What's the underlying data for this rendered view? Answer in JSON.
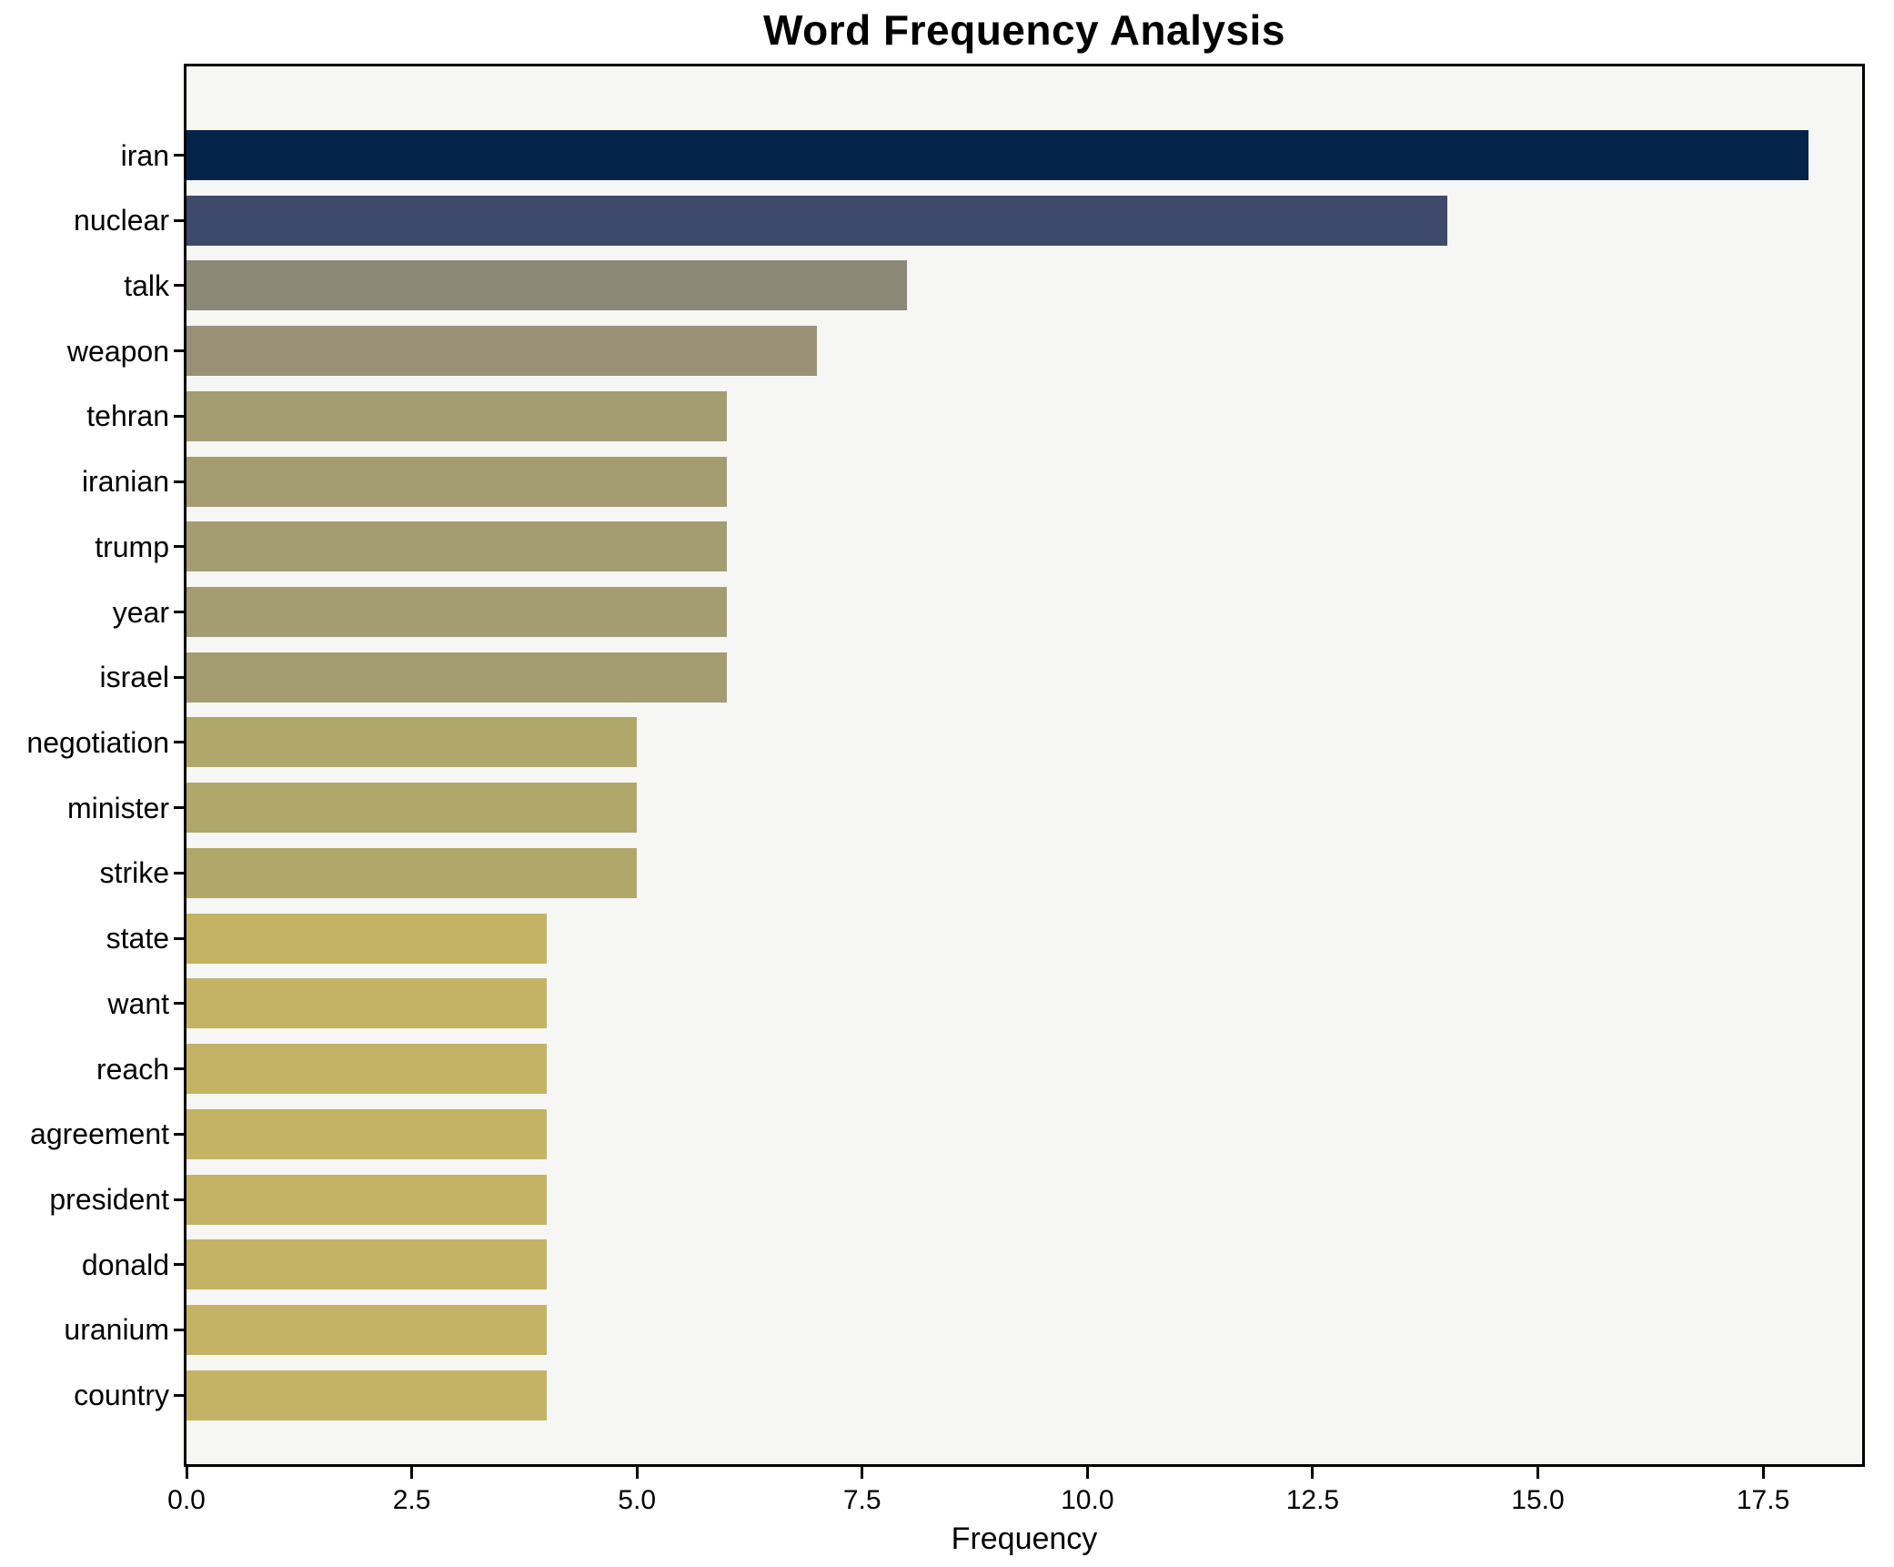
{
  "chart_data": {
    "type": "bar",
    "orientation": "horizontal",
    "title": "Word Frequency Analysis",
    "xlabel": "Frequency",
    "ylabel": "",
    "categories": [
      "iran",
      "nuclear",
      "talk",
      "weapon",
      "tehran",
      "iranian",
      "trump",
      "year",
      "israel",
      "negotiation",
      "minister",
      "strike",
      "state",
      "want",
      "reach",
      "agreement",
      "president",
      "donald",
      "uranium",
      "country"
    ],
    "values": [
      18,
      14,
      8,
      7,
      6,
      6,
      6,
      6,
      6,
      5,
      5,
      5,
      4,
      4,
      4,
      4,
      4,
      4,
      4,
      4
    ],
    "bar_colors": [
      "#03234b",
      "#3e4a6b",
      "#8b8878",
      "#999176",
      "#a59d72",
      "#a59d72",
      "#a59d72",
      "#a59d72",
      "#a59d72",
      "#b0a76b",
      "#b0a76b",
      "#b0a76b",
      "#c4b364",
      "#c4b364",
      "#c4b364",
      "#c4b364",
      "#c4b364",
      "#c4b364",
      "#c4b364",
      "#c4b364"
    ],
    "xlim": [
      0,
      18.6
    ],
    "xticks": [
      0.0,
      2.5,
      5.0,
      7.5,
      10.0,
      12.5,
      15.0,
      17.5
    ],
    "xtick_labels": [
      "0.0",
      "2.5",
      "5.0",
      "7.5",
      "10.0",
      "12.5",
      "15.0",
      "17.5"
    ],
    "grid": false,
    "legend": null,
    "colors": {
      "plot_background": "#f6f6f5",
      "figure_background": "#ffffff",
      "spine": "#000000",
      "text": "#000000"
    }
  }
}
